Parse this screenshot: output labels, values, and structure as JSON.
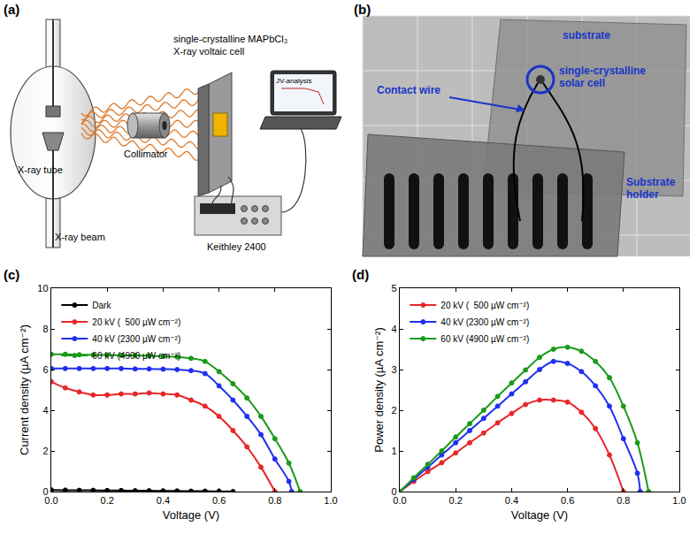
{
  "panel_labels": [
    "(a)",
    "(b)",
    "(c)",
    "(d)"
  ],
  "diagram": {
    "tube": "X-ray tube",
    "beam": "X-ray beam",
    "collimator": "Collimator",
    "cell": [
      "single-crystalline MAPbCl₃",
      "X-ray voltaic cell"
    ],
    "software": "JV-analysis",
    "meter": "Keithley 2400"
  },
  "photo": {
    "substrate": "substrate",
    "cell": [
      "single-crystalline",
      "solar cell"
    ],
    "wire": "Contact wire",
    "holder": [
      "Substrate",
      "holder"
    ]
  },
  "chart_data": [
    {
      "type": "line",
      "x_label": "Voltage (V)",
      "y_label": "Current density (µA cm⁻²)",
      "xlim": [
        0,
        1
      ],
      "xticks": [
        {
          "value": 0,
          "label": "0.0"
        },
        0.2,
        0.4,
        0.6,
        0.8,
        {
          "value": 1,
          "label": "1.0"
        }
      ],
      "ylim": [
        0,
        10
      ],
      "yticks": [
        0,
        2,
        4,
        6,
        8,
        10
      ],
      "grid": false,
      "legend": "upper left",
      "marker": "circle",
      "series": [
        {
          "name": "Dark",
          "color": "#000000",
          "x": [
            0,
            0.05,
            0.1,
            0.15,
            0.2,
            0.25,
            0.3,
            0.35,
            0.4,
            0.45,
            0.5,
            0.55,
            0.6,
            0.65
          ],
          "values": [
            0.08,
            0.07,
            0.06,
            0.06,
            0.05,
            0.05,
            0.04,
            0.04,
            0.03,
            0.03,
            0.02,
            0.02,
            0.01,
            0
          ]
        },
        {
          "name": "20 kV (  500 µW cm⁻²)",
          "color": "#e8262a",
          "x": [
            0,
            0.05,
            0.1,
            0.15,
            0.2,
            0.25,
            0.3,
            0.35,
            0.4,
            0.45,
            0.5,
            0.55,
            0.6,
            0.65,
            0.7,
            0.75,
            0.8
          ],
          "values": [
            5.4,
            5.1,
            4.9,
            4.75,
            4.75,
            4.8,
            4.8,
            4.85,
            4.8,
            4.75,
            4.5,
            4.2,
            3.7,
            3.0,
            2.2,
            1.2,
            0
          ]
        },
        {
          "name": "40 kV (2300 µW cm⁻²)",
          "color": "#1f2ff0",
          "x": [
            0,
            0.05,
            0.1,
            0.15,
            0.2,
            0.25,
            0.3,
            0.35,
            0.4,
            0.45,
            0.5,
            0.55,
            0.6,
            0.65,
            0.7,
            0.75,
            0.8,
            0.85,
            0.86
          ],
          "values": [
            6.05,
            6.05,
            6.05,
            6.05,
            6.05,
            6.05,
            6.03,
            6.03,
            6.02,
            6.0,
            5.95,
            5.8,
            5.2,
            4.5,
            3.7,
            2.8,
            1.6,
            0.5,
            0
          ]
        },
        {
          "name": "60 kV (4900 µW cm⁻²)",
          "color": "#1a9a1a",
          "x": [
            0,
            0.05,
            0.1,
            0.15,
            0.2,
            0.25,
            0.3,
            0.35,
            0.4,
            0.45,
            0.5,
            0.55,
            0.6,
            0.65,
            0.7,
            0.75,
            0.8,
            0.85,
            0.89
          ],
          "values": [
            6.75,
            6.75,
            6.73,
            6.72,
            6.72,
            6.7,
            6.7,
            6.68,
            6.65,
            6.62,
            6.55,
            6.4,
            5.9,
            5.3,
            4.6,
            3.7,
            2.6,
            1.4,
            0
          ]
        }
      ]
    },
    {
      "type": "line",
      "x_label": "Voltage (V)",
      "y_label": "Power density (µA cm⁻²)",
      "xlim": [
        0,
        1
      ],
      "xticks": [
        {
          "value": 0,
          "label": "0.0"
        },
        0.2,
        0.4,
        0.6,
        0.8,
        {
          "value": 1,
          "label": "1.0"
        }
      ],
      "ylim": [
        0,
        5
      ],
      "yticks": [
        0,
        1,
        2,
        3,
        4,
        5
      ],
      "grid": false,
      "legend": "upper left",
      "marker": "circle",
      "series": [
        {
          "name": "20 kV (  500 µW cm⁻²)",
          "color": "#e8262a",
          "x": [
            0,
            0.05,
            0.1,
            0.15,
            0.2,
            0.25,
            0.3,
            0.35,
            0.4,
            0.45,
            0.5,
            0.55,
            0.6,
            0.65,
            0.7,
            0.75,
            0.8
          ],
          "values": [
            0,
            0.25,
            0.49,
            0.71,
            0.95,
            1.2,
            1.44,
            1.69,
            1.92,
            2.14,
            2.25,
            2.25,
            2.2,
            1.95,
            1.55,
            0.9,
            0
          ]
        },
        {
          "name": "40 kV (2300 µW cm⁻²)",
          "color": "#1f2ff0",
          "x": [
            0,
            0.05,
            0.1,
            0.15,
            0.2,
            0.25,
            0.3,
            0.35,
            0.4,
            0.45,
            0.5,
            0.55,
            0.6,
            0.65,
            0.7,
            0.75,
            0.8,
            0.85,
            0.86
          ],
          "values": [
            0,
            0.3,
            0.6,
            0.9,
            1.2,
            1.5,
            1.8,
            2.1,
            2.4,
            2.7,
            3.0,
            3.2,
            3.15,
            2.95,
            2.6,
            2.1,
            1.3,
            0.45,
            0
          ]
        },
        {
          "name": "60 kV (4900 µW cm⁻²)",
          "color": "#1a9a1a",
          "x": [
            0,
            0.05,
            0.1,
            0.15,
            0.2,
            0.25,
            0.3,
            0.35,
            0.4,
            0.45,
            0.5,
            0.55,
            0.6,
            0.65,
            0.7,
            0.75,
            0.8,
            0.85,
            0.89
          ],
          "values": [
            0,
            0.34,
            0.67,
            1.0,
            1.34,
            1.67,
            2.0,
            2.34,
            2.67,
            2.99,
            3.3,
            3.5,
            3.55,
            3.45,
            3.2,
            2.8,
            2.1,
            1.2,
            0
          ]
        }
      ]
    }
  ]
}
